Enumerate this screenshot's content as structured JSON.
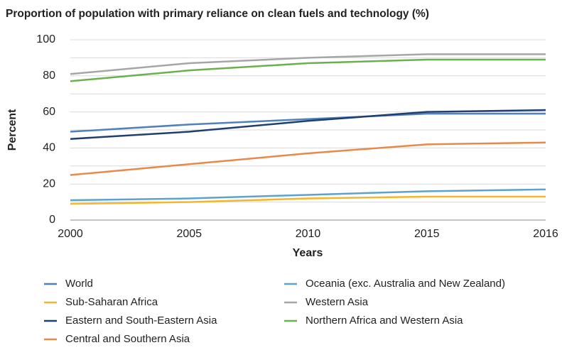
{
  "chart_data": {
    "type": "line",
    "title": "Proportion of population with primary reliance on clean fuels and technology (%)",
    "x_label": "Years",
    "y_label": "Percent",
    "categories": [
      "2000",
      "2005",
      "2010",
      "2015",
      "2016"
    ],
    "series": [
      {
        "name": "World",
        "color": "#4f81bd",
        "values": [
          49,
          53,
          56,
          59,
          59
        ]
      },
      {
        "name": "Sub-Saharan Africa",
        "color": "#f5b62b",
        "values": [
          9,
          10,
          12,
          13,
          13
        ]
      },
      {
        "name": "Eastern and South-Eastern Asia",
        "color": "#1f3f6e",
        "values": [
          45,
          49,
          55,
          60,
          61
        ]
      },
      {
        "name": "Central and Southern Asia",
        "color": "#e8894a",
        "values": [
          25,
          31,
          37,
          42,
          43
        ]
      },
      {
        "name": "Oceania (exc. Australia and New Zealand)",
        "color": "#5ba3cf",
        "values": [
          11,
          12,
          14,
          16,
          17
        ]
      },
      {
        "name": "Western Asia",
        "color": "#a6a6a6",
        "values": [
          81,
          87,
          90,
          92,
          92
        ]
      },
      {
        "name": "Northern Africa and Western Asia",
        "color": "#6ab04c",
        "values": [
          77,
          83,
          87,
          89,
          89
        ]
      }
    ],
    "ylim": [
      0,
      100
    ],
    "yticks": [
      0,
      20,
      40,
      60,
      80,
      100
    ],
    "minor_yticks": [
      10,
      30,
      50,
      70,
      90
    ],
    "grid": true
  }
}
